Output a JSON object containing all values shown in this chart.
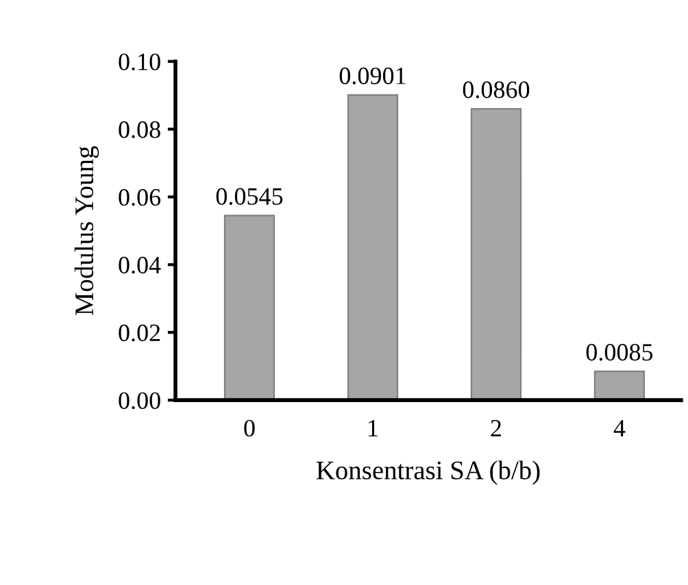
{
  "chart_data": {
    "type": "bar",
    "xlabel": "Konsentrasi SA (b/b)",
    "ylabel": "Modulus Young",
    "categories": [
      "0",
      "1",
      "2",
      "4"
    ],
    "values": [
      0.0545,
      0.0901,
      0.086,
      0.0085
    ],
    "value_labels": [
      "0.0545",
      "0.0901",
      "0.0860",
      "0.0085"
    ],
    "color": "#a6a6a6",
    "ylim": [
      0,
      0.1
    ],
    "yticks": [
      {
        "value": 0,
        "label": "0.00"
      },
      {
        "value": 0.02,
        "label": "0.02"
      },
      {
        "value": 0.04,
        "label": "0.04"
      },
      {
        "value": 0.06,
        "label": "0.06"
      },
      {
        "value": 0.08,
        "label": "0.08"
      },
      {
        "value": 0.1,
        "label": "0.10"
      }
    ],
    "grid": false,
    "legend": false
  }
}
